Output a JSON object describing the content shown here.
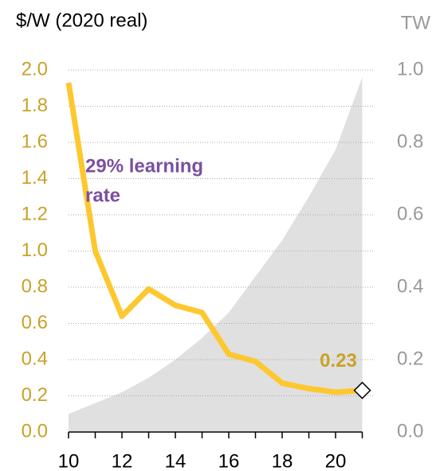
{
  "chart_data": {
    "type": "line",
    "title": "$/W (2020 real)",
    "y2_label": "TW",
    "annotation": [
      "29% learning",
      "rate"
    ],
    "categories": [
      "10",
      null,
      "12",
      null,
      "14",
      null,
      "16",
      null,
      "18",
      null,
      "20",
      null
    ],
    "series": [
      {
        "type": "area",
        "axis": "y2",
        "color": "#e0e0e0",
        "values": [
          0.05,
          0.08,
          0.11,
          0.15,
          0.2,
          0.26,
          0.33,
          0.43,
          0.53,
          0.65,
          0.78,
          0.98
        ]
      },
      {
        "type": "line",
        "color": "#fdc82f",
        "values": [
          1.93,
          1.0,
          0.64,
          0.79,
          0.7,
          0.66,
          0.43,
          0.39,
          0.27,
          0.24,
          0.22,
          0.23
        ]
      }
    ],
    "ylim": [
      0,
      2
    ],
    "yticks": [
      {
        "value": 0,
        "label": "0.0"
      },
      0.2,
      0.4,
      0.6,
      0.8,
      {
        "value": 1,
        "label": "1.0"
      },
      1.2,
      1.4,
      1.6,
      1.8,
      {
        "value": 2,
        "label": "2.0"
      }
    ],
    "y2lim": [
      0,
      1
    ],
    "y2ticks": [
      {
        "value": 0,
        "label": "0.0"
      },
      0.2,
      0.4,
      0.6,
      0.8,
      {
        "value": 1,
        "label": "1.0"
      }
    ],
    "grid": true
  }
}
